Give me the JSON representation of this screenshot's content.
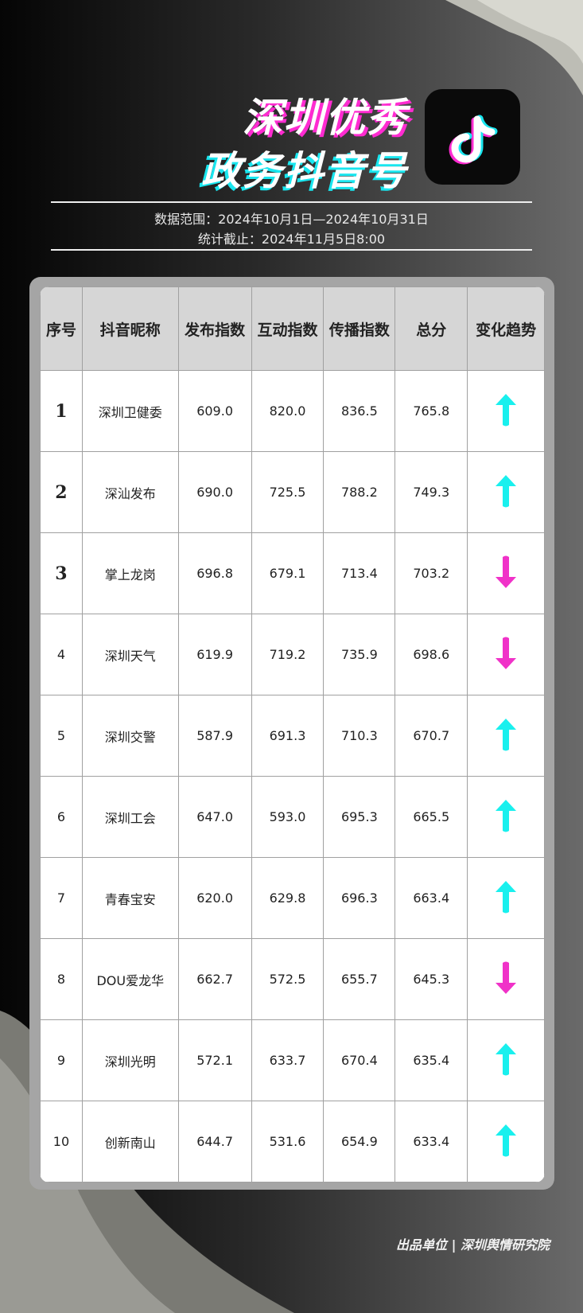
{
  "header": {
    "title_line1": "深圳优秀",
    "title_line2": "政务抖音号",
    "data_range": "数据范围：2024年10月1日—2024年10月31日",
    "cutoff": "统计截止：2024年11月5日8:00",
    "logo_icon": "douyin-logo-icon"
  },
  "colors": {
    "up": "#19f0ee",
    "down": "#f032c8",
    "accent_pink": "#ff2bd1",
    "accent_cyan": "#19e6ef"
  },
  "table": {
    "columns": [
      "序号",
      "抖音昵称",
      "发布指数",
      "互动指数",
      "传播指数",
      "总分",
      "变化趋势"
    ],
    "rows": [
      {
        "rank": "1",
        "name": "深圳卫健委",
        "publish": "609.0",
        "interact": "820.0",
        "spread": "836.5",
        "total": "765.8",
        "trend": "up"
      },
      {
        "rank": "2",
        "name": "深汕发布",
        "publish": "690.0",
        "interact": "725.5",
        "spread": "788.2",
        "total": "749.3",
        "trend": "up"
      },
      {
        "rank": "3",
        "name": "掌上龙岗",
        "publish": "696.8",
        "interact": "679.1",
        "spread": "713.4",
        "total": "703.2",
        "trend": "down"
      },
      {
        "rank": "4",
        "name": "深圳天气",
        "publish": "619.9",
        "interact": "719.2",
        "spread": "735.9",
        "total": "698.6",
        "trend": "down"
      },
      {
        "rank": "5",
        "name": "深圳交警",
        "publish": "587.9",
        "interact": "691.3",
        "spread": "710.3",
        "total": "670.7",
        "trend": "up"
      },
      {
        "rank": "6",
        "name": "深圳工会",
        "publish": "647.0",
        "interact": "593.0",
        "spread": "695.3",
        "total": "665.5",
        "trend": "up"
      },
      {
        "rank": "7",
        "name": "青春宝安",
        "publish": "620.0",
        "interact": "629.8",
        "spread": "696.3",
        "total": "663.4",
        "trend": "up"
      },
      {
        "rank": "8",
        "name": "DOU爱龙华",
        "publish": "662.7",
        "interact": "572.5",
        "spread": "655.7",
        "total": "645.3",
        "trend": "down"
      },
      {
        "rank": "9",
        "name": "深圳光明",
        "publish": "572.1",
        "interact": "633.7",
        "spread": "670.4",
        "total": "635.4",
        "trend": "up"
      },
      {
        "rank": "10",
        "name": "创新南山",
        "publish": "644.7",
        "interact": "531.6",
        "spread": "654.9",
        "total": "633.4",
        "trend": "up"
      }
    ]
  },
  "footer": {
    "text": "出品单位 | 深圳舆情研究院"
  }
}
